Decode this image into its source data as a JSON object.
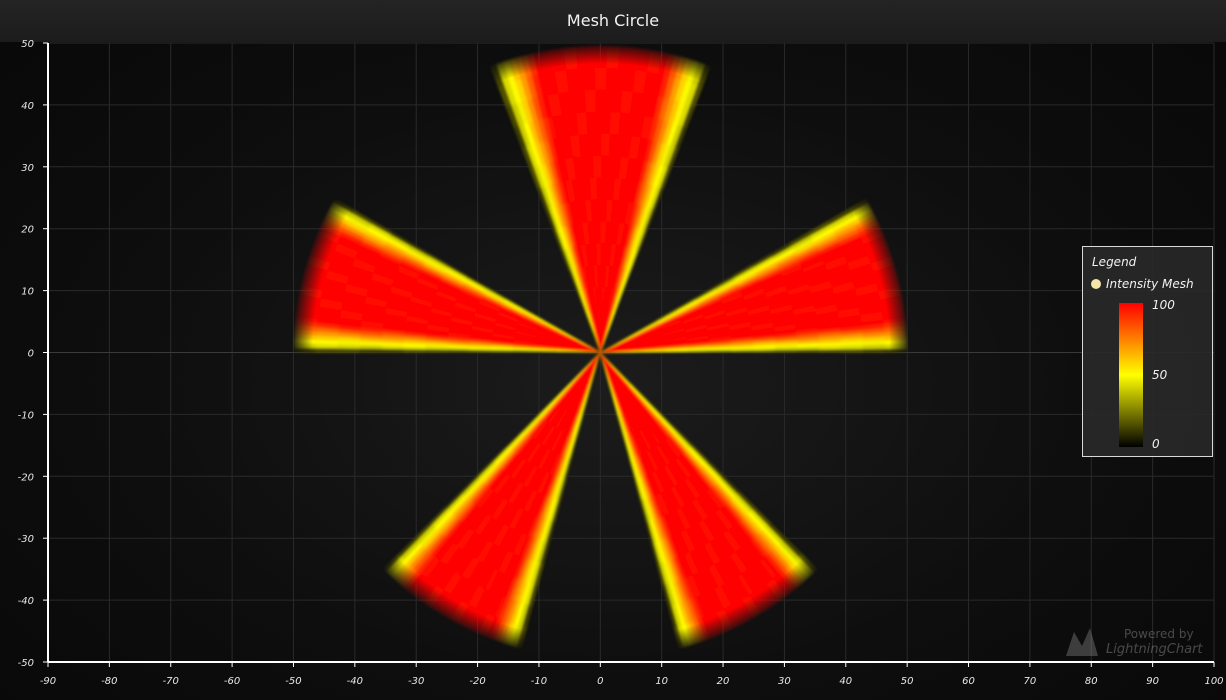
{
  "chart_data": {
    "type": "heatmap",
    "title": "Mesh Circle",
    "xlabel": "",
    "ylabel": "",
    "xlim": [
      -90,
      100
    ],
    "ylim": [
      -50,
      50
    ],
    "x_ticks": [
      -90,
      -80,
      -70,
      -60,
      -50,
      -40,
      -30,
      -20,
      -10,
      0,
      10,
      20,
      30,
      40,
      50,
      60,
      70,
      80,
      90,
      100
    ],
    "y_ticks": [
      50,
      40,
      30,
      20,
      10,
      0,
      -10,
      -20,
      -30,
      -40,
      -50
    ],
    "grid": true,
    "mesh": {
      "shape": "circle",
      "center": [
        0,
        0
      ],
      "radius": 50,
      "sectors": [
        {
          "start_deg": 69,
          "end_deg": 111
        },
        {
          "start_deg": 150,
          "end_deg": 180
        },
        {
          "start_deg": 0,
          "end_deg": 30
        },
        {
          "start_deg": 225,
          "end_deg": 255
        },
        {
          "start_deg": 285,
          "end_deg": 315
        }
      ],
      "intensity_peak": 100,
      "intensity_edge": 50
    },
    "series": [
      {
        "name": "Intensity Mesh"
      }
    ],
    "color_scale": {
      "min": 0,
      "mid": 50,
      "max": 100,
      "stops": [
        {
          "value": 0,
          "color": "#000000"
        },
        {
          "value": 50,
          "color": "#ffff00"
        },
        {
          "value": 100,
          "color": "#ff0000"
        }
      ]
    },
    "legend": {
      "title": "Legend",
      "placement": "right",
      "labels": [
        "100",
        "50",
        "0"
      ]
    }
  },
  "watermark": {
    "line1": "Powered by",
    "line2": "LightningChart"
  },
  "colors": {
    "background": "#0e0e0e",
    "grid": "#2a2a2a",
    "axis": "#ffffff",
    "text": "#e8e8e8"
  }
}
